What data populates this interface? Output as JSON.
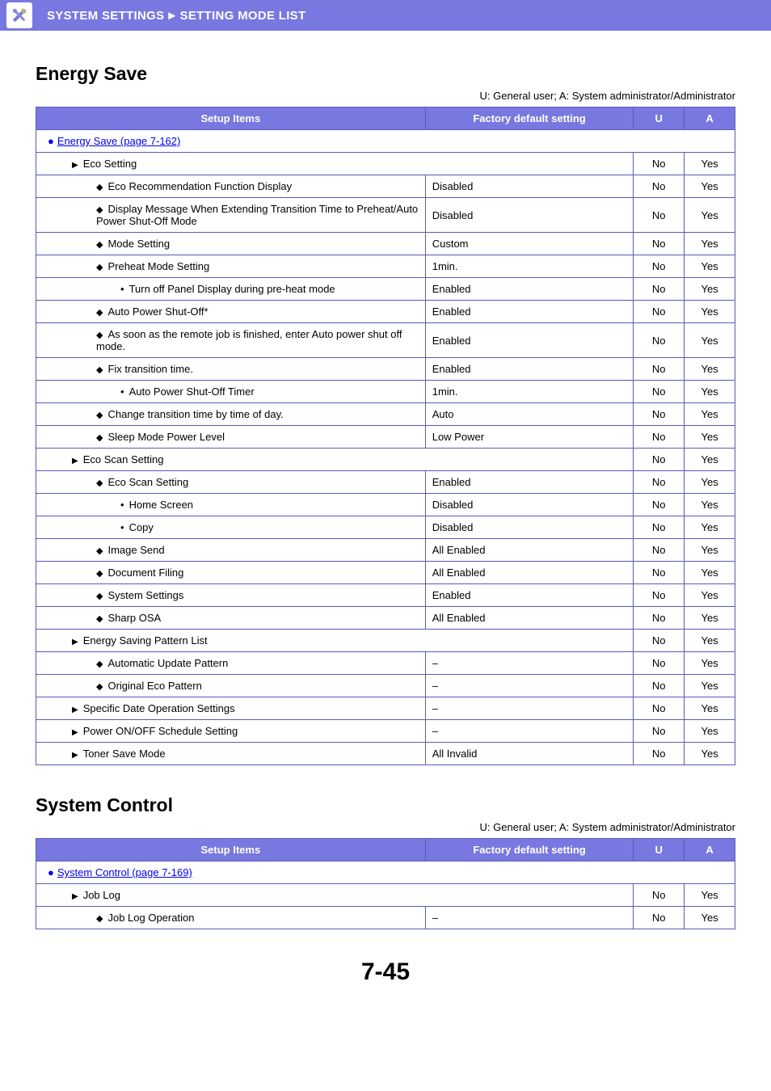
{
  "header": {
    "title_left": "SYSTEM SETTINGS",
    "title_right": "SETTING MODE LIST"
  },
  "page_number": "7-45",
  "legend_text": "U: General user; A: System administrator/Administrator",
  "table_headers": {
    "setup": "Setup Items",
    "default": "Factory default setting",
    "u": "U",
    "a": "A"
  },
  "sections": [
    {
      "heading": "Energy Save",
      "link_row": "Energy Save (page 7-162)",
      "rows": [
        {
          "indent": 1,
          "marker": "tri",
          "label": "Eco Setting",
          "span2": true,
          "u": "No",
          "a": "Yes"
        },
        {
          "indent": 2,
          "marker": "dia",
          "label": "Eco Recommendation Function Display",
          "default": "Disabled",
          "u": "No",
          "a": "Yes"
        },
        {
          "indent": 2,
          "marker": "dia",
          "label": "Display Message When Extending Transition Time to Preheat/Auto Power Shut-Off Mode",
          "default": "Disabled",
          "u": "No",
          "a": "Yes"
        },
        {
          "indent": 2,
          "marker": "dia",
          "label": "Mode Setting",
          "default": "Custom",
          "u": "No",
          "a": "Yes"
        },
        {
          "indent": 2,
          "marker": "dia",
          "label": "Preheat Mode Setting",
          "default": "1min.",
          "u": "No",
          "a": "Yes"
        },
        {
          "indent": 3,
          "marker": "dot",
          "label": "Turn off Panel Display during pre-heat mode",
          "default": "Enabled",
          "u": "No",
          "a": "Yes"
        },
        {
          "indent": 2,
          "marker": "dia",
          "label": "Auto Power Shut-Off*",
          "default": "Enabled",
          "u": "No",
          "a": "Yes"
        },
        {
          "indent": 2,
          "marker": "dia",
          "label": "As soon as the remote job is finished, enter Auto power shut off mode.",
          "default": "Enabled",
          "u": "No",
          "a": "Yes"
        },
        {
          "indent": 2,
          "marker": "dia",
          "label": "Fix transition time.",
          "default": "Enabled",
          "u": "No",
          "a": "Yes"
        },
        {
          "indent": 3,
          "marker": "dot",
          "label": "Auto Power Shut-Off Timer",
          "default": "1min.",
          "u": "No",
          "a": "Yes"
        },
        {
          "indent": 2,
          "marker": "dia",
          "label": "Change transition time by time of day.",
          "default": "Auto",
          "u": "No",
          "a": "Yes"
        },
        {
          "indent": 2,
          "marker": "dia",
          "label": "Sleep Mode Power Level",
          "default": "Low Power",
          "u": "No",
          "a": "Yes"
        },
        {
          "indent": 1,
          "marker": "tri",
          "label": "Eco Scan Setting",
          "span2": true,
          "u": "No",
          "a": "Yes"
        },
        {
          "indent": 2,
          "marker": "dia",
          "label": "Eco Scan Setting",
          "default": "Enabled",
          "u": "No",
          "a": "Yes"
        },
        {
          "indent": 3,
          "marker": "dot",
          "label": "Home Screen",
          "default": "Disabled",
          "u": "No",
          "a": "Yes"
        },
        {
          "indent": 3,
          "marker": "dot",
          "label": "Copy",
          "default": "Disabled",
          "u": "No",
          "a": "Yes"
        },
        {
          "indent": 2,
          "marker": "dia",
          "label": "Image Send",
          "default": "All Enabled",
          "u": "No",
          "a": "Yes"
        },
        {
          "indent": 2,
          "marker": "dia",
          "label": "Document Filing",
          "default": "All Enabled",
          "u": "No",
          "a": "Yes"
        },
        {
          "indent": 2,
          "marker": "dia",
          "label": "System Settings",
          "default": "Enabled",
          "u": "No",
          "a": "Yes"
        },
        {
          "indent": 2,
          "marker": "dia",
          "label": "Sharp OSA",
          "default": "All Enabled",
          "u": "No",
          "a": "Yes"
        },
        {
          "indent": 1,
          "marker": "tri",
          "label": "Energy Saving Pattern List",
          "span2": true,
          "u": "No",
          "a": "Yes"
        },
        {
          "indent": 2,
          "marker": "dia",
          "label": "Automatic Update Pattern",
          "default": "–",
          "u": "No",
          "a": "Yes"
        },
        {
          "indent": 2,
          "marker": "dia",
          "label": "Original Eco Pattern",
          "default": "–",
          "u": "No",
          "a": "Yes"
        },
        {
          "indent": 1,
          "marker": "tri",
          "label": "Specific Date Operation Settings",
          "default": "–",
          "u": "No",
          "a": "Yes"
        },
        {
          "indent": 1,
          "marker": "tri",
          "label": "Power ON/OFF Schedule Setting",
          "default": "–",
          "u": "No",
          "a": "Yes"
        },
        {
          "indent": 1,
          "marker": "tri",
          "label": "Toner Save Mode",
          "default": "All Invalid",
          "u": "No",
          "a": "Yes"
        }
      ]
    },
    {
      "heading": "System Control",
      "link_row": "System Control (page 7-169)",
      "rows": [
        {
          "indent": 1,
          "marker": "tri",
          "label": "Job Log",
          "span2": true,
          "u": "No",
          "a": "Yes"
        },
        {
          "indent": 2,
          "marker": "dia",
          "label": "Job Log Operation",
          "default": "–",
          "u": "No",
          "a": "Yes"
        }
      ]
    }
  ]
}
